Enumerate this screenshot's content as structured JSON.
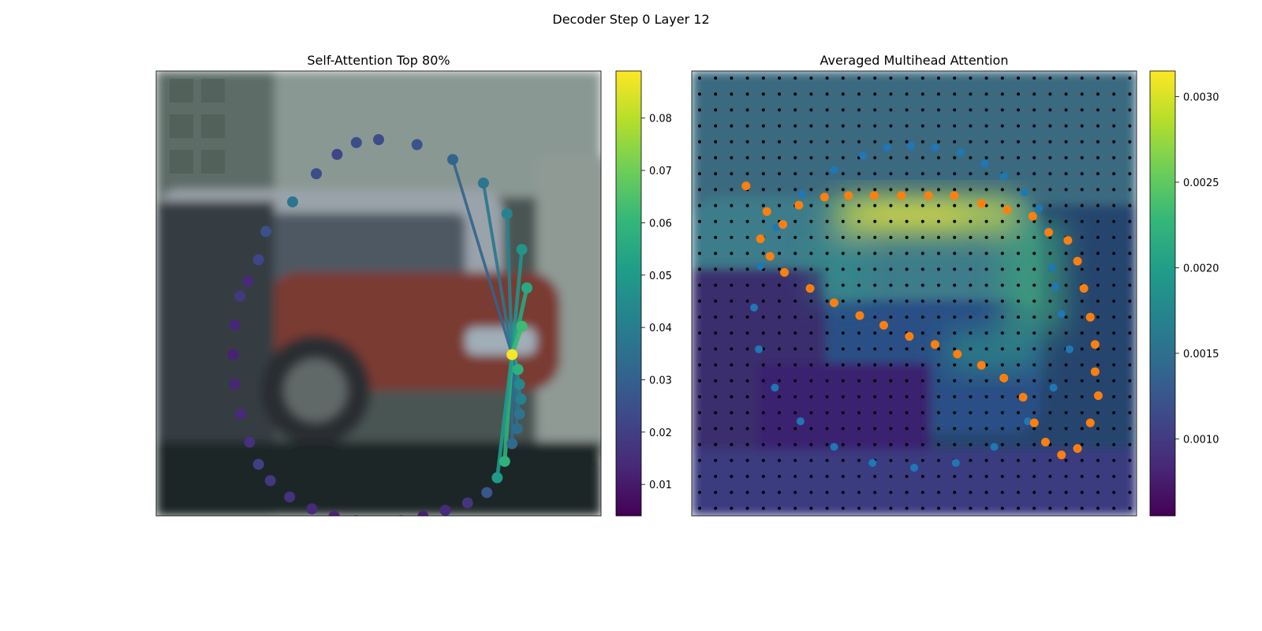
{
  "figure": {
    "title": "Decoder Step 0 Layer 12"
  },
  "colormap_stops": [
    "#440154",
    "#482878",
    "#3e4989",
    "#31688e",
    "#26828e",
    "#1f9e89",
    "#35b779",
    "#6ece58",
    "#b5de2b",
    "#fde725"
  ],
  "chart_data": [
    {
      "type": "scatter",
      "title": "Self-Attention Top 80%",
      "description_of_background": "blurred street photo: white and red cars parked by a wall",
      "colorbar": {
        "min": 0.004,
        "max": 0.089,
        "ticks": [
          0.01,
          0.02,
          0.03,
          0.04,
          0.05,
          0.06,
          0.07,
          0.08
        ]
      },
      "query_index": 8,
      "points": [
        {
          "x": 0.0,
          "y": 1.0,
          "v": 0.024
        },
        {
          "x": 0.259,
          "y": 0.966,
          "v": 0.026
        },
        {
          "x": 0.5,
          "y": 0.866,
          "v": 0.031
        },
        {
          "x": 0.707,
          "y": 0.707,
          "v": 0.037
        },
        {
          "x": 0.866,
          "y": 0.5,
          "v": 0.042
        },
        {
          "x": 0.966,
          "y": 0.259,
          "v": 0.048
        },
        {
          "x": 1.0,
          "y": 0.0,
          "v": 0.055
        },
        {
          "x": 0.966,
          "y": -0.259,
          "v": 0.062
        },
        {
          "x": 0.9,
          "y": -0.45,
          "v": 0.088
        },
        {
          "x": 0.94,
          "y": -0.55,
          "v": 0.058
        },
        {
          "x": 0.95,
          "y": -0.65,
          "v": 0.044
        },
        {
          "x": 0.96,
          "y": -0.75,
          "v": 0.041
        },
        {
          "x": 0.95,
          "y": -0.85,
          "v": 0.037
        },
        {
          "x": 0.935,
          "y": -0.95,
          "v": 0.034
        },
        {
          "x": 0.9,
          "y": -1.05,
          "v": 0.033
        },
        {
          "x": 0.85,
          "y": -1.17,
          "v": 0.058
        },
        {
          "x": 0.8,
          "y": -1.28,
          "v": 0.05
        },
        {
          "x": 0.73,
          "y": -1.38,
          "v": 0.027
        },
        {
          "x": 0.6,
          "y": -1.45,
          "v": 0.017
        },
        {
          "x": 0.45,
          "y": -1.5,
          "v": 0.014
        },
        {
          "x": 0.3,
          "y": -1.54,
          "v": 0.012
        },
        {
          "x": 0.15,
          "y": -1.57,
          "v": 0.011
        },
        {
          "x": 0.0,
          "y": -1.58,
          "v": 0.011
        },
        {
          "x": -0.15,
          "y": -1.57,
          "v": 0.012
        },
        {
          "x": -0.3,
          "y": -1.54,
          "v": 0.013
        },
        {
          "x": -0.45,
          "y": -1.49,
          "v": 0.014
        },
        {
          "x": -0.6,
          "y": -1.41,
          "v": 0.016
        },
        {
          "x": -0.73,
          "y": -1.3,
          "v": 0.018
        },
        {
          "x": -0.81,
          "y": -1.19,
          "v": 0.02
        },
        {
          "x": -0.87,
          "y": -1.04,
          "v": 0.016
        },
        {
          "x": -0.93,
          "y": -0.85,
          "v": 0.014
        },
        {
          "x": -0.97,
          "y": -0.65,
          "v": 0.013
        },
        {
          "x": -0.98,
          "y": -0.45,
          "v": 0.012
        },
        {
          "x": -0.97,
          "y": -0.25,
          "v": 0.013
        },
        {
          "x": -0.935,
          "y": -0.055,
          "v": 0.018
        },
        {
          "x": -0.88,
          "y": 0.045,
          "v": 0.014
        },
        {
          "x": -0.81,
          "y": 0.19,
          "v": 0.022
        },
        {
          "x": -0.76,
          "y": 0.38,
          "v": 0.025
        },
        {
          "x": -0.58,
          "y": 0.58,
          "v": 0.037
        },
        {
          "x": -0.42,
          "y": 0.77,
          "v": 0.024
        },
        {
          "x": -0.28,
          "y": 0.9,
          "v": 0.022
        },
        {
          "x": -0.15,
          "y": 0.98,
          "v": 0.024
        }
      ]
    },
    {
      "type": "heatmap",
      "title": "Averaged Multihead Attention",
      "colorbar": {
        "min": 0.00055,
        "max": 0.00315,
        "ticks": [
          0.001,
          0.0015,
          0.002,
          0.0025,
          0.003
        ]
      },
      "grid_points": {
        "cols": 28,
        "rows": 28
      },
      "blue_points": [
        [
          0.0,
          -1.0
        ],
        [
          0.26,
          -0.97
        ],
        [
          0.5,
          -0.87
        ],
        [
          0.71,
          -0.71
        ],
        [
          0.87,
          -0.5
        ],
        [
          0.97,
          -0.26
        ],
        [
          0.92,
          -0.04
        ],
        [
          0.88,
          0.13
        ],
        [
          0.86,
          0.25
        ],
        [
          0.83,
          0.48
        ],
        [
          0.78,
          0.62
        ],
        [
          0.69,
          0.72
        ],
        [
          0.56,
          0.82
        ],
        [
          0.44,
          0.9
        ],
        [
          0.29,
          0.97
        ],
        [
          0.13,
          1.0
        ],
        [
          -0.02,
          1.01
        ],
        [
          -0.17,
          1.0
        ],
        [
          -0.32,
          0.95
        ],
        [
          -0.5,
          0.86
        ],
        [
          -0.7,
          0.71
        ],
        [
          -0.86,
          0.5
        ],
        [
          -0.96,
          0.26
        ],
        [
          -1.0,
          0.0
        ],
        [
          -0.97,
          -0.26
        ],
        [
          -0.87,
          -0.5
        ],
        [
          -0.71,
          -0.71
        ],
        [
          -0.5,
          -0.87
        ],
        [
          -0.26,
          -0.97
        ],
        [
          0.0,
          -1.0
        ]
      ],
      "orange_points": [
        [
          -1.05,
          0.76
        ],
        [
          -0.92,
          0.6
        ],
        [
          -0.82,
          0.52
        ],
        [
          -0.72,
          0.64
        ],
        [
          -0.56,
          0.69
        ],
        [
          -0.41,
          0.7
        ],
        [
          -0.25,
          0.7
        ],
        [
          -0.08,
          0.7
        ],
        [
          0.09,
          0.7
        ],
        [
          0.25,
          0.7
        ],
        [
          0.42,
          0.65
        ],
        [
          0.58,
          0.61
        ],
        [
          0.74,
          0.57
        ],
        [
          0.84,
          0.47
        ],
        [
          0.96,
          0.42
        ],
        [
          1.02,
          0.29
        ],
        [
          1.06,
          0.12
        ],
        [
          1.1,
          -0.06
        ],
        [
          1.13,
          -0.23
        ],
        [
          1.13,
          -0.4
        ],
        [
          1.15,
          -0.55
        ],
        [
          1.1,
          -0.72
        ],
        [
          1.02,
          -0.88
        ],
        [
          0.92,
          -0.92
        ],
        [
          0.82,
          -0.84
        ],
        [
          0.75,
          -0.72
        ],
        [
          0.68,
          -0.56
        ],
        [
          0.56,
          -0.44
        ],
        [
          0.42,
          -0.36
        ],
        [
          0.27,
          -0.29
        ],
        [
          0.13,
          -0.23
        ],
        [
          -0.03,
          -0.18
        ],
        [
          -0.19,
          -0.11
        ],
        [
          -0.34,
          -0.05
        ],
        [
          -0.5,
          0.03
        ],
        [
          -0.65,
          0.12
        ],
        [
          -0.81,
          0.22
        ],
        [
          -0.9,
          0.32
        ],
        [
          -0.96,
          0.43
        ]
      ]
    }
  ]
}
